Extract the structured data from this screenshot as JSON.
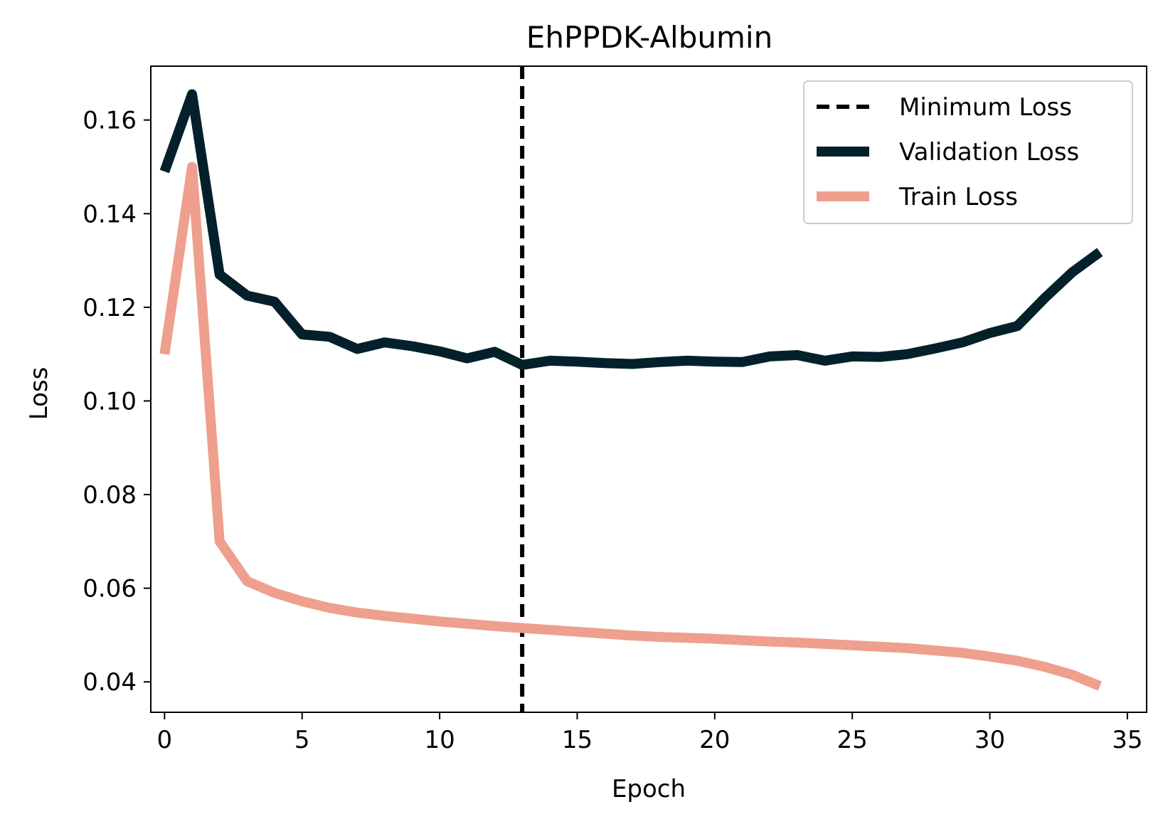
{
  "chart_data": {
    "type": "line",
    "title": "EhPPDK-Albumin",
    "xlabel": "Epoch",
    "ylabel": "Loss",
    "xlim": [
      -0.5,
      35.7
    ],
    "ylim": [
      0.0335,
      0.1715
    ],
    "x_ticks": [
      0,
      5,
      10,
      15,
      20,
      25,
      30,
      35
    ],
    "y_ticks": [
      0.04,
      0.06,
      0.08,
      0.1,
      0.12,
      0.14,
      0.16
    ],
    "y_tick_labels": [
      "0.04",
      "0.06",
      "0.08",
      "0.10",
      "0.12",
      "0.14",
      "0.16"
    ],
    "legend_position": "top-right",
    "grid": false,
    "min_loss_epoch": 13,
    "series": [
      {
        "name": "Validation Loss",
        "color": "#03202b",
        "x": [
          0,
          1,
          2,
          3,
          4,
          5,
          6,
          7,
          8,
          9,
          10,
          11,
          12,
          13,
          14,
          15,
          16,
          17,
          18,
          19,
          20,
          21,
          22,
          23,
          24,
          25,
          26,
          27,
          28,
          29,
          30,
          31,
          32,
          33,
          34
        ],
        "values": [
          0.149,
          0.1655,
          0.127,
          0.1225,
          0.1212,
          0.1142,
          0.1137,
          0.1111,
          0.1125,
          0.1117,
          0.1106,
          0.1091,
          0.1105,
          0.1077,
          0.1086,
          0.1084,
          0.1081,
          0.1079,
          0.1083,
          0.1086,
          0.1084,
          0.1083,
          0.1095,
          0.1098,
          0.1086,
          0.1095,
          0.1094,
          0.11,
          0.1112,
          0.1125,
          0.1145,
          0.116,
          0.122,
          0.1275,
          0.1318
        ]
      },
      {
        "name": "Train Loss",
        "color": "#ef9f8e",
        "x": [
          0,
          1,
          2,
          3,
          4,
          5,
          6,
          7,
          8,
          9,
          10,
          11,
          12,
          13,
          14,
          15,
          16,
          17,
          18,
          19,
          20,
          21,
          22,
          23,
          24,
          25,
          26,
          27,
          28,
          29,
          30,
          31,
          32,
          33,
          34
        ],
        "values": [
          0.11,
          0.15,
          0.07,
          0.0615,
          0.059,
          0.0572,
          0.0558,
          0.0548,
          0.0541,
          0.0535,
          0.0529,
          0.0524,
          0.0519,
          0.0515,
          0.0511,
          0.0507,
          0.0503,
          0.0499,
          0.0496,
          0.0494,
          0.0492,
          0.0489,
          0.0486,
          0.0484,
          0.0481,
          0.0478,
          0.0475,
          0.0472,
          0.0467,
          0.0462,
          0.0454,
          0.0445,
          0.0432,
          0.0415,
          0.0391
        ]
      }
    ],
    "legend": [
      {
        "label": "Minimum Loss",
        "style": "dashed",
        "color": "#000000"
      },
      {
        "label": "Validation Loss",
        "style": "solid",
        "color": "#03202b"
      },
      {
        "label": "Train Loss",
        "style": "solid",
        "color": "#ef9f8e"
      }
    ]
  }
}
